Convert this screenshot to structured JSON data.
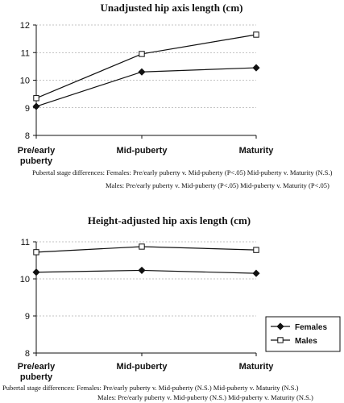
{
  "chart_data": [
    {
      "type": "line",
      "title": "Unadjusted hip axis length (cm)",
      "categories": [
        "Pre/early puberty",
        "Mid-puberty",
        "Maturity"
      ],
      "ylim": [
        8,
        12
      ],
      "yticks": [
        8,
        9,
        10,
        11,
        12
      ],
      "grid": true,
      "series": [
        {
          "name": "Females",
          "marker": "filled-diamond",
          "values": [
            9.05,
            10.3,
            10.45
          ]
        },
        {
          "name": "Males",
          "marker": "open-square",
          "values": [
            9.35,
            10.95,
            11.65
          ]
        }
      ],
      "notes": [
        "Pubertal stage differences:  Females: Pre/early puberty v. Mid-puberty (P<.05)  Mid-puberty v. Maturity (N.S.)",
        "Males: Pre/early puberty v. Mid-puberty (P<.05)  Mid-puberty v. Maturity (P<.05)"
      ]
    },
    {
      "type": "line",
      "title": "Height-adjusted hip axis length (cm)",
      "categories": [
        "Pre/early puberty",
        "Mid-puberty",
        "Maturity"
      ],
      "ylim": [
        8,
        11
      ],
      "yticks": [
        8,
        9,
        10,
        11
      ],
      "grid": true,
      "legend_position": "right",
      "series": [
        {
          "name": "Females",
          "marker": "filled-diamond",
          "values": [
            10.18,
            10.23,
            10.15
          ]
        },
        {
          "name": "Males",
          "marker": "open-square",
          "values": [
            10.72,
            10.87,
            10.78
          ]
        }
      ],
      "notes": [
        "Pubertal stage differences:  Females: Pre/early puberty v. Mid-puberty (N.S.)  Mid-puberty v. Maturity (N.S.)",
        "Males: Pre/early puberty v. Mid-puberty (N.S.)  Mid-puberty v. Maturity (N.S.)"
      ]
    }
  ]
}
